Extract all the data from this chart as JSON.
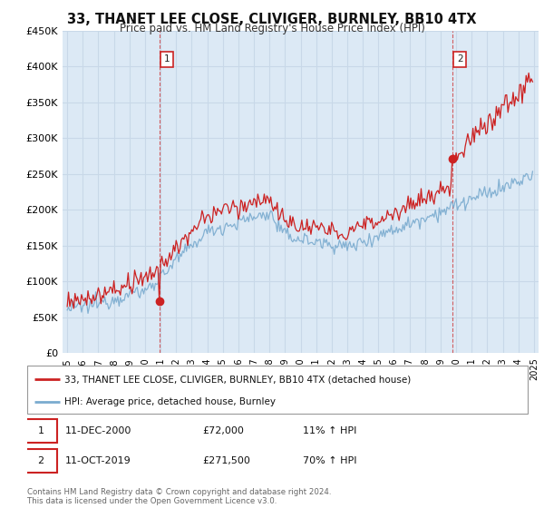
{
  "title": "33, THANET LEE CLOSE, CLIVIGER, BURNLEY, BB10 4TX",
  "subtitle": "Price paid vs. HM Land Registry's House Price Index (HPI)",
  "ylim": [
    0,
    450000
  ],
  "yticks": [
    0,
    50000,
    100000,
    150000,
    200000,
    250000,
    300000,
    350000,
    400000,
    450000
  ],
  "ytick_labels": [
    "£0",
    "£50K",
    "£100K",
    "£150K",
    "£200K",
    "£250K",
    "£300K",
    "£350K",
    "£400K",
    "£450K"
  ],
  "hpi_color": "#7aabcf",
  "price_color": "#cc2222",
  "chart_bg_color": "#dce9f5",
  "sale1_year": 2000.917,
  "sale1_value": 72000,
  "sale2_year": 2019.75,
  "sale2_value": 271500,
  "legend_line1": "33, THANET LEE CLOSE, CLIVIGER, BURNLEY, BB10 4TX (detached house)",
  "legend_line2": "HPI: Average price, detached house, Burnley",
  "annotation1_date": "11-DEC-2000",
  "annotation1_price": "£72,000",
  "annotation1_hpi": "11% ↑ HPI",
  "annotation2_date": "11-OCT-2019",
  "annotation2_price": "£271,500",
  "annotation2_hpi": "70% ↑ HPI",
  "footer": "Contains HM Land Registry data © Crown copyright and database right 2024.\nThis data is licensed under the Open Government Licence v3.0.",
  "background_color": "#ffffff",
  "grid_color": "#c8d8e8"
}
